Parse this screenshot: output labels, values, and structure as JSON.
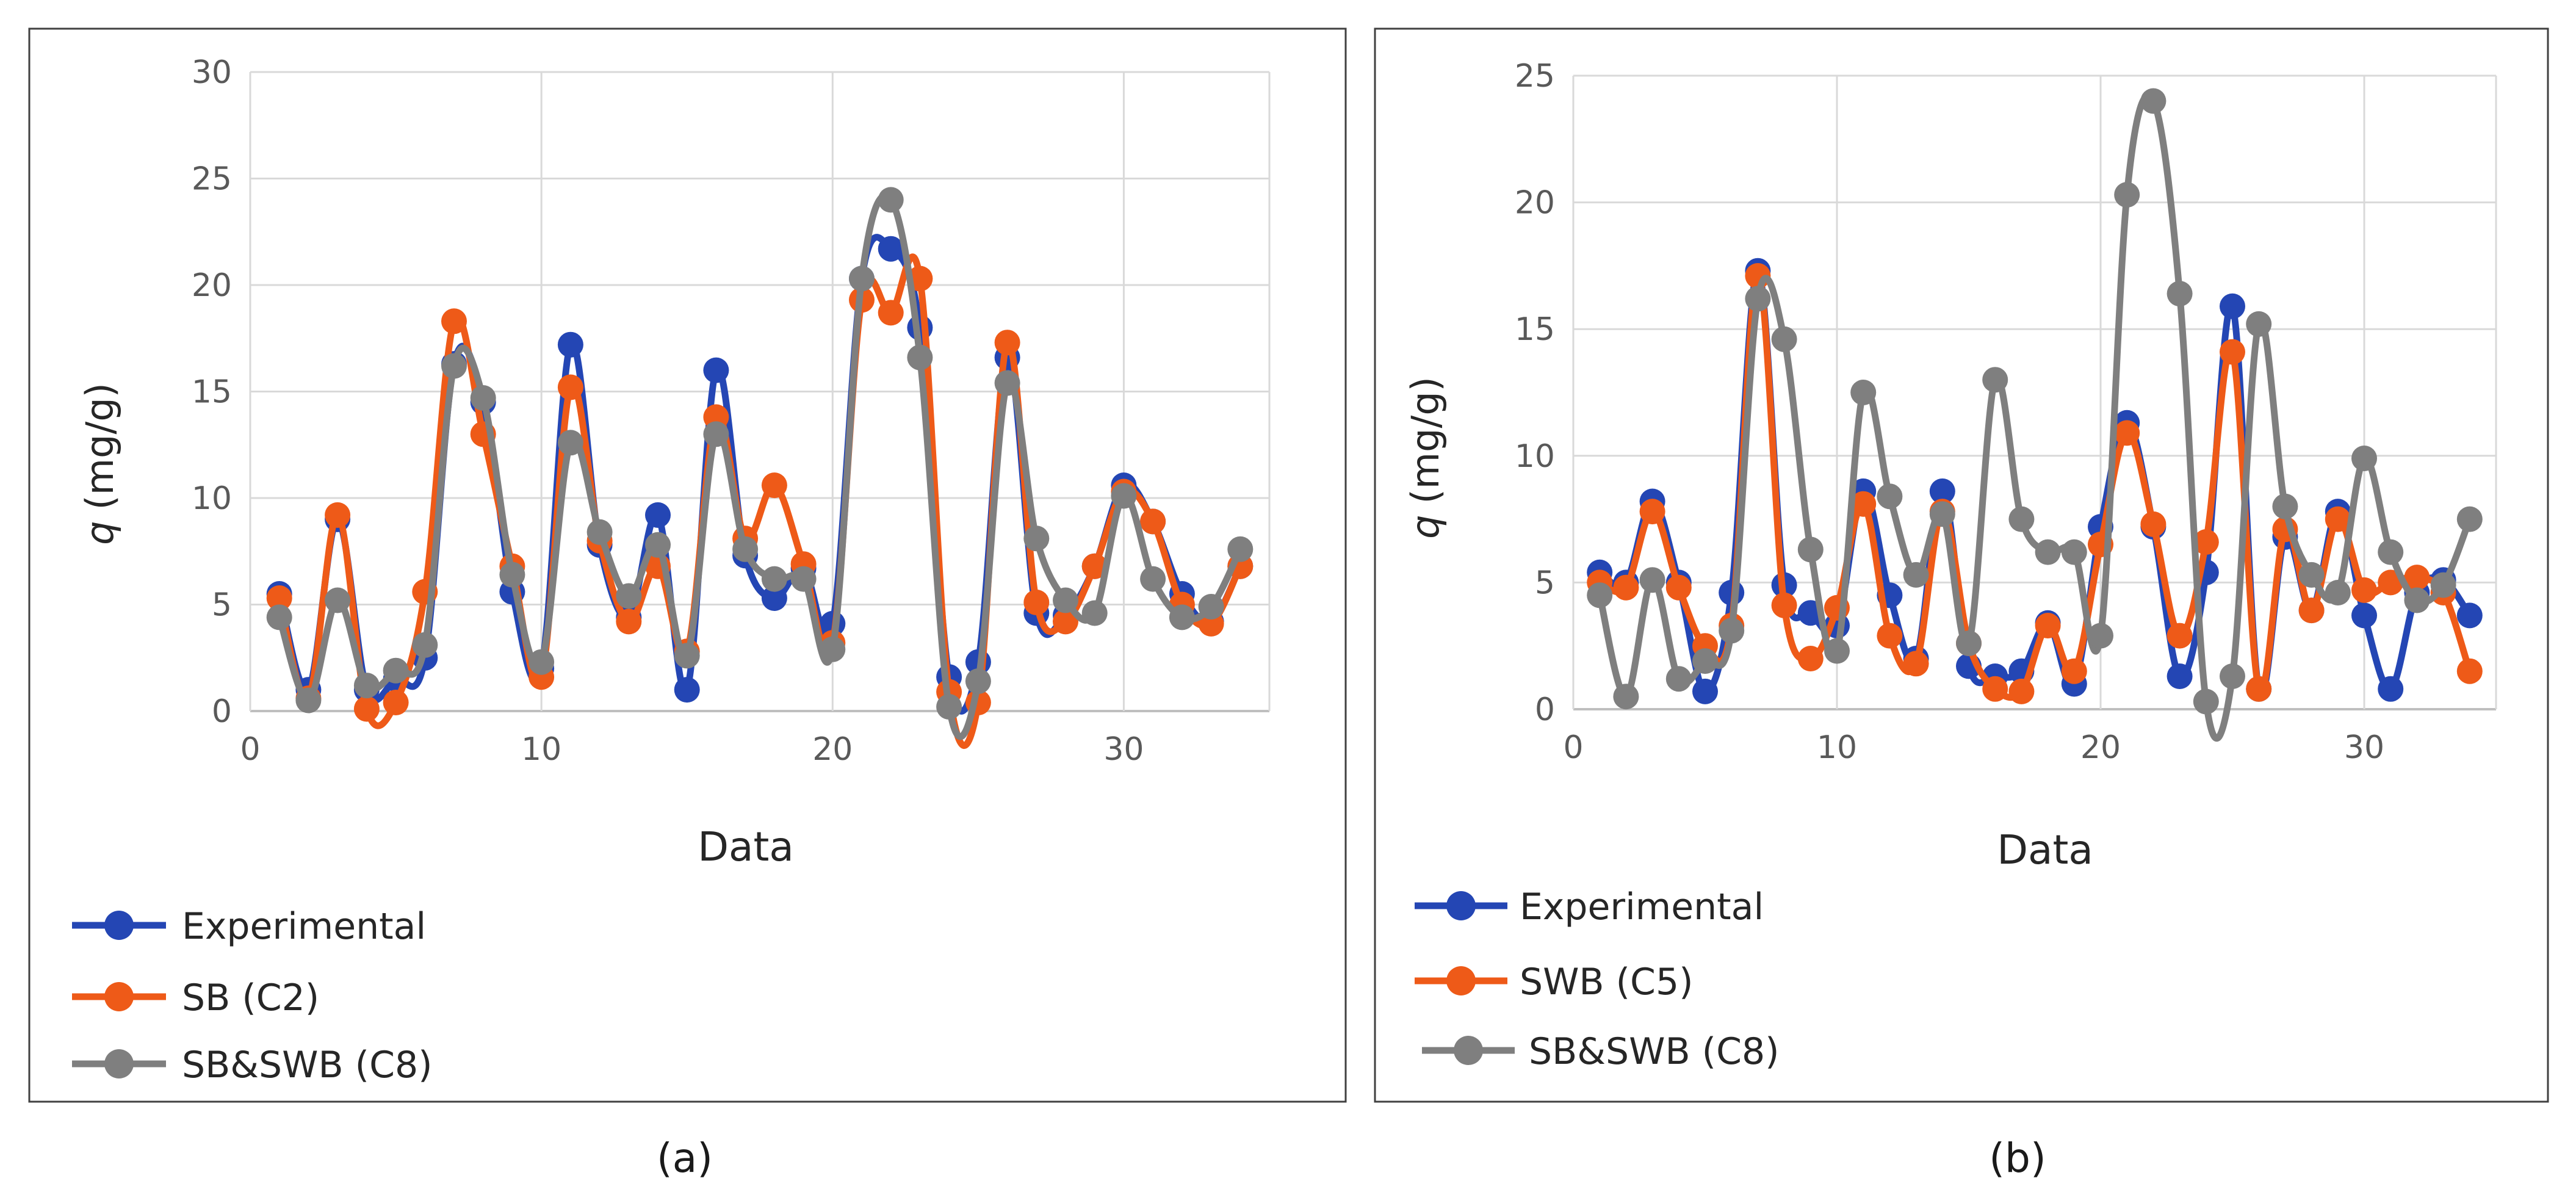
{
  "figure": {
    "panel_labels": [
      "(a)",
      "(b)"
    ]
  },
  "chart_data": [
    {
      "type": "line",
      "panel_label": "(a)",
      "title": "",
      "xlabel": "Data",
      "ylabel_italic": "q",
      "ylabel_unit": "(mg/g)",
      "xlim": [
        0,
        35
      ],
      "ylim": [
        0,
        30
      ],
      "xticks": [
        0,
        10,
        20,
        30
      ],
      "yticks": [
        0,
        5,
        10,
        15,
        20,
        25,
        30
      ],
      "grid": true,
      "legend_position": "bottom-left",
      "x": [
        1,
        2,
        3,
        4,
        5,
        6,
        7,
        8,
        9,
        10,
        11,
        12,
        13,
        14,
        15,
        16,
        17,
        18,
        19,
        20,
        21,
        22,
        23,
        24,
        25,
        26,
        27,
        28,
        29,
        30,
        31,
        32,
        33,
        34
      ],
      "series": [
        {
          "name": "Experimental",
          "color": "#2446b4",
          "values": [
            5.5,
            1.0,
            9.0,
            1.0,
            1.5,
            2.5,
            16.3,
            14.5,
            5.6,
            2.0,
            17.2,
            7.8,
            4.4,
            9.2,
            1.0,
            16.0,
            7.3,
            5.3,
            6.7,
            4.1,
            20.3,
            21.7,
            18.0,
            1.6,
            2.3,
            16.6,
            4.6,
            4.5,
            6.8,
            10.6,
            8.9,
            5.5,
            4.2,
            6.8
          ]
        },
        {
          "name": "SB (C2)",
          "color": "#ee5a18",
          "values": [
            5.3,
            0.6,
            9.2,
            0.1,
            0.4,
            5.6,
            18.3,
            13.0,
            6.8,
            1.6,
            15.2,
            8.0,
            4.2,
            6.8,
            2.8,
            13.8,
            8.1,
            10.6,
            6.9,
            3.2,
            19.3,
            18.7,
            20.3,
            0.9,
            0.4,
            17.3,
            5.1,
            4.2,
            6.8,
            10.3,
            8.9,
            5.0,
            4.1,
            6.8
          ]
        },
        {
          "name": "SB&SWB (C8)",
          "color": "#7f7f7f",
          "values": [
            4.4,
            0.5,
            5.2,
            1.2,
            1.9,
            3.1,
            16.2,
            14.7,
            6.4,
            2.3,
            12.6,
            8.4,
            5.4,
            7.8,
            2.6,
            13.0,
            7.6,
            6.2,
            6.2,
            2.9,
            20.3,
            24.0,
            16.6,
            0.2,
            1.4,
            15.4,
            8.1,
            5.2,
            4.6,
            10.1,
            6.2,
            4.4,
            4.9,
            7.6
          ]
        }
      ]
    },
    {
      "type": "line",
      "panel_label": "(b)",
      "title": "",
      "xlabel": "Data",
      "ylabel_italic": "q",
      "ylabel_unit": "(mg/g)",
      "xlim": [
        0,
        35
      ],
      "ylim": [
        0,
        25
      ],
      "xticks": [
        0,
        10,
        20,
        30
      ],
      "yticks": [
        0,
        5,
        10,
        15,
        20,
        25
      ],
      "grid": true,
      "legend_position": "bottom-left",
      "x": [
        1,
        2,
        3,
        4,
        5,
        6,
        7,
        8,
        9,
        10,
        11,
        12,
        13,
        14,
        15,
        16,
        17,
        18,
        19,
        20,
        21,
        22,
        23,
        24,
        25,
        26,
        27,
        28,
        29,
        30,
        31,
        32,
        33,
        34
      ],
      "series": [
        {
          "name": "Experimental",
          "color": "#2446b4",
          "values": [
            5.4,
            5.0,
            8.2,
            5.0,
            0.7,
            4.6,
            17.3,
            4.9,
            3.8,
            3.3,
            8.6,
            4.5,
            2.0,
            8.6,
            1.7,
            1.3,
            1.5,
            3.4,
            1.0,
            7.2,
            11.3,
            7.2,
            1.3,
            5.4,
            15.9,
            0.8,
            6.8,
            3.9,
            7.8,
            3.7,
            0.8,
            4.6,
            5.1,
            3.7
          ]
        },
        {
          "name": "SWB (C5)",
          "color": "#ee5a18",
          "values": [
            5.0,
            4.8,
            7.8,
            4.8,
            2.5,
            3.3,
            17.1,
            4.1,
            2.0,
            4.0,
            8.1,
            2.9,
            1.8,
            7.8,
            2.6,
            0.8,
            0.7,
            3.3,
            1.5,
            6.5,
            10.9,
            7.3,
            2.9,
            6.6,
            14.1,
            0.8,
            7.1,
            3.9,
            7.5,
            4.7,
            5.0,
            5.2,
            4.6,
            1.5
          ]
        },
        {
          "name": "SB&SWB (C8)",
          "color": "#7f7f7f",
          "values": [
            4.5,
            0.5,
            5.1,
            1.2,
            1.9,
            3.1,
            16.2,
            14.6,
            6.3,
            2.3,
            12.5,
            8.4,
            5.3,
            7.7,
            2.6,
            13.0,
            7.5,
            6.2,
            6.2,
            2.9,
            20.3,
            24.0,
            16.4,
            0.3,
            1.3,
            15.2,
            8.0,
            5.3,
            4.6,
            9.9,
            6.2,
            4.3,
            4.9,
            7.5
          ]
        }
      ]
    }
  ]
}
